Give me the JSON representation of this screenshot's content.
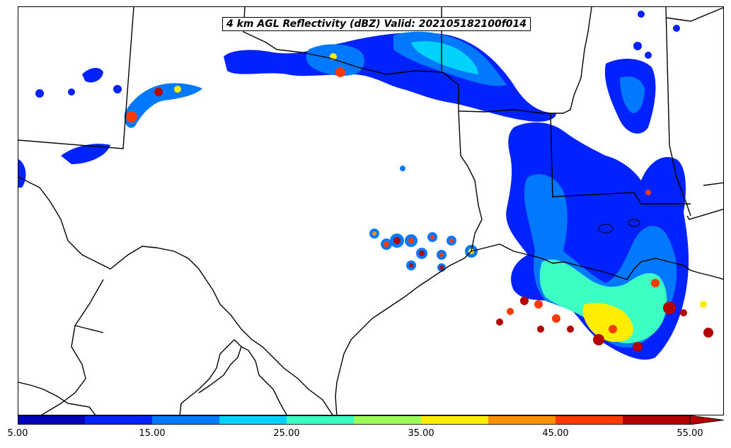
{
  "title": "4 km AGL Reflectivity (dBZ) Valid: 202105182100f014",
  "colorbar": {
    "levels": [
      5,
      10,
      15,
      20,
      25,
      30,
      35,
      40,
      45,
      50,
      55
    ],
    "colors": [
      "#0000b8",
      "#0022ff",
      "#0078ff",
      "#00d2ff",
      "#3cffc4",
      "#9cff5a",
      "#ffee00",
      "#ff9000",
      "#ff3a00",
      "#b40000"
    ],
    "extend": "max",
    "tick_labels": [
      "5.00",
      "15.00",
      "25.00",
      "35.00",
      "45.00",
      "55.00"
    ]
  },
  "map": {
    "region": "Texas / Louisiana / Gulf Coast",
    "boundary_color": "#000000"
  }
}
